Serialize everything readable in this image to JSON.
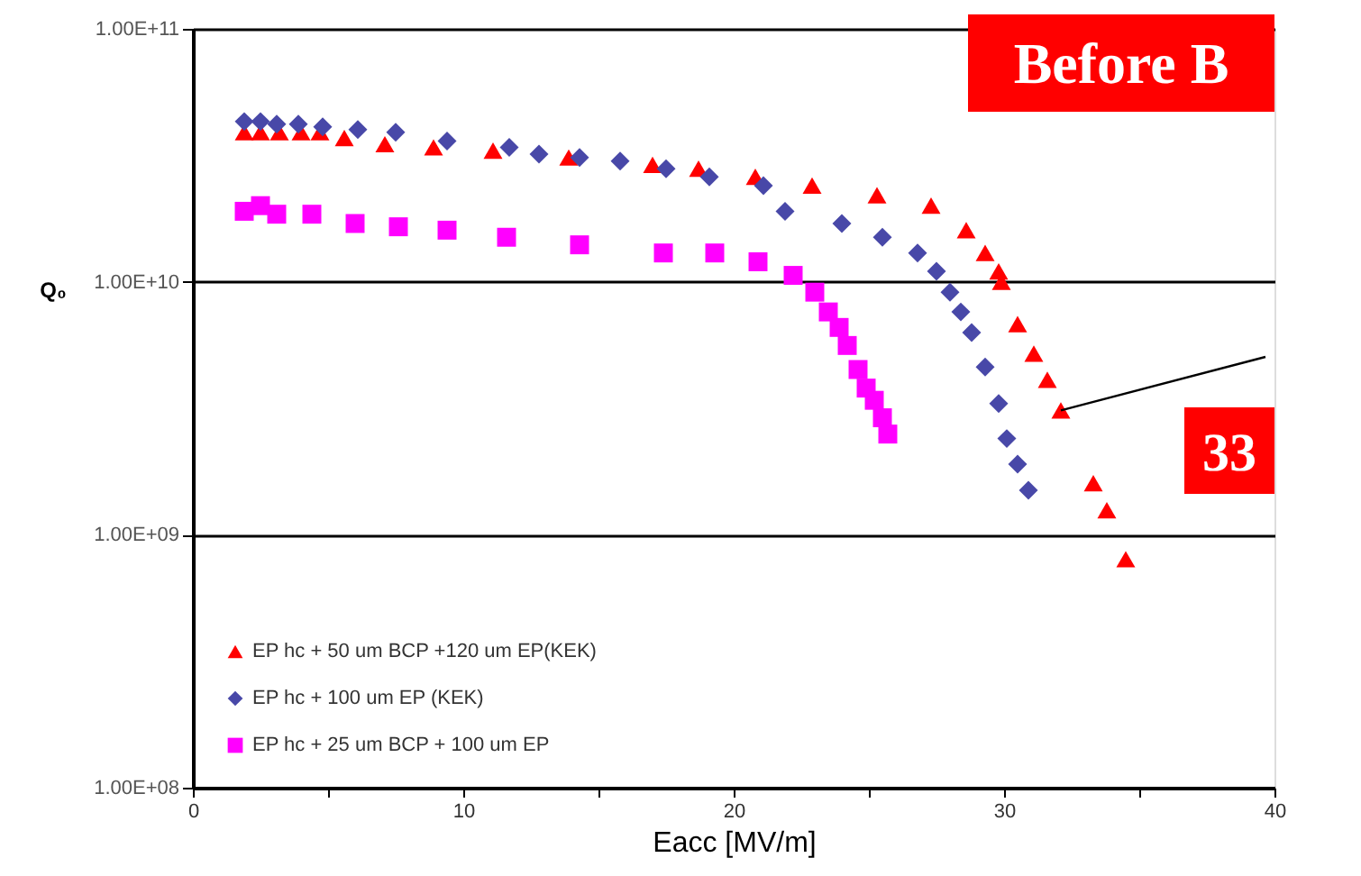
{
  "chart_data": {
    "type": "scatter",
    "xlabel": "Eacc [MV/m]",
    "ylabel": "Q₀",
    "log": "y",
    "grid": "y",
    "legend": "bottom left",
    "xlim": [
      0,
      40
    ],
    "xticks": [
      0,
      {
        "value": 5,
        "label": null
      },
      10,
      {
        "value": 15,
        "label": null
      },
      20,
      {
        "value": 25,
        "label": null
      },
      30,
      {
        "value": 35,
        "label": null
      },
      40
    ],
    "ylim": [
      100000000,
      100000000000
    ],
    "yticks": [
      {
        "value": 100000000,
        "label": "1.00E+08"
      },
      {
        "value": 1000000000,
        "label": "1.00E+09"
      },
      {
        "value": 10000000000,
        "label": "1.00E+10"
      },
      {
        "value": 100000000000,
        "label": "1.00E+11"
      }
    ],
    "series": [
      {
        "name": "EP hc + 50 um BCP +120 um EP(KEK)",
        "color": "#ff0000",
        "marker": "triangle",
        "x": [
          1.9,
          2.5,
          3.2,
          4.0,
          4.7,
          5.6,
          7.1,
          8.9,
          11.1,
          13.9,
          17.0,
          18.7,
          20.8,
          22.9,
          25.3,
          27.3,
          28.6,
          29.3,
          29.8,
          29.9,
          30.5,
          31.1,
          31.6,
          32.1,
          33.3,
          33.8,
          34.5
        ],
        "values": [
          39000000000.0,
          39000000000.0,
          39000000000.0,
          39000000000.0,
          39000000000.0,
          37000000000.0,
          35000000000.0,
          34000000000.0,
          33000000000.0,
          31000000000.0,
          29000000000.0,
          28000000000.0,
          26000000000.0,
          24000000000.0,
          22000000000.0,
          20000000000.0,
          16000000000.0,
          13000000000.0,
          11000000000.0,
          10000000000.0,
          6800000000.0,
          5200000000.0,
          4100000000.0,
          3100000000.0,
          1600000000.0,
          1250000000.0,
          800000000.0
        ]
      },
      {
        "name": "EP hc + 100 um EP (KEK)",
        "color": "#4848a8",
        "marker": "diamond",
        "x": [
          1.9,
          2.5,
          3.1,
          3.9,
          4.8,
          6.1,
          7.5,
          9.4,
          11.7,
          12.8,
          14.3,
          15.8,
          17.5,
          19.1,
          21.1,
          21.9,
          24.0,
          25.5,
          26.8,
          27.5,
          28.0,
          28.4,
          28.8,
          29.3,
          29.8,
          30.1,
          30.5,
          30.9
        ],
        "values": [
          43000000000.0,
          43000000000.0,
          42000000000.0,
          42000000000.0,
          41000000000.0,
          40000000000.0,
          39000000000.0,
          36000000000.0,
          34000000000.0,
          32000000000.0,
          31000000000.0,
          30000000000.0,
          28000000000.0,
          26000000000.0,
          24000000000.0,
          19000000000.0,
          17000000000.0,
          15000000000.0,
          13000000000.0,
          11000000000.0,
          9100000000.0,
          7600000000.0,
          6300000000.0,
          4600000000.0,
          3300000000.0,
          2400000000.0,
          1900000000.0,
          1500000000.0
        ]
      },
      {
        "name": "EP hc + 25 um BCP + 100 um EP",
        "color": "#ff00ff",
        "marker": "square",
        "x": [
          1.9,
          2.5,
          3.1,
          4.4,
          6.0,
          7.6,
          9.4,
          11.6,
          14.3,
          17.4,
          19.3,
          20.9,
          22.2,
          23.0,
          23.5,
          23.9,
          24.2,
          24.6,
          24.9,
          25.2,
          25.5,
          25.7
        ],
        "values": [
          19000000000.0,
          20000000000.0,
          18500000000.0,
          18500000000.0,
          17000000000.0,
          16500000000.0,
          16000000000.0,
          15000000000.0,
          14000000000.0,
          13000000000.0,
          13000000000.0,
          12000000000.0,
          10600000000.0,
          9100000000.0,
          7600000000.0,
          6600000000.0,
          5600000000.0,
          4500000000.0,
          3800000000.0,
          3400000000.0,
          2900000000.0,
          2500000000.0
        ]
      }
    ],
    "annotations": [
      "Before B",
      {
        "text": "33",
        "x": 32.1,
        "y": 3100000000.0
      }
    ]
  }
}
